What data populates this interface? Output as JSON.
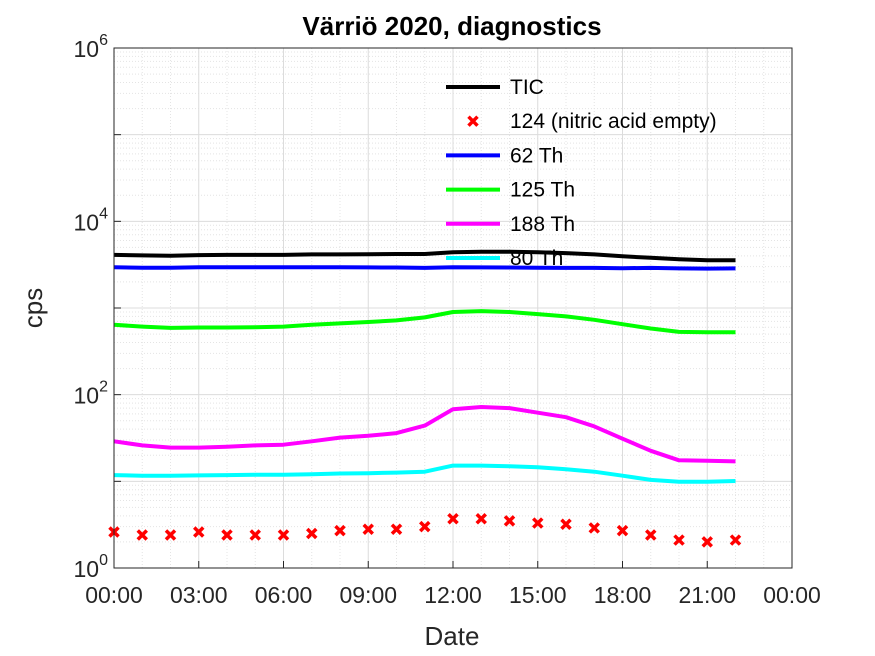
{
  "chart_data": {
    "type": "line",
    "title": "Värriö 2020, diagnostics",
    "xlabel": "Date",
    "ylabel": "cps",
    "yscale": "log",
    "ylim": [
      1,
      1000000
    ],
    "yticks": [
      {
        "value": 1,
        "base": "10",
        "exp": "0"
      },
      {
        "value": 100,
        "base": "10",
        "exp": "2"
      },
      {
        "value": 10000,
        "base": "10",
        "exp": "4"
      },
      {
        "value": 1000000,
        "base": "10",
        "exp": "6"
      }
    ],
    "xlim": [
      0,
      24
    ],
    "xticks": [
      {
        "value": 0,
        "label": "00:00"
      },
      {
        "value": 3,
        "label": "03:00"
      },
      {
        "value": 6,
        "label": "06:00"
      },
      {
        "value": 9,
        "label": "09:00"
      },
      {
        "value": 12,
        "label": "12:00"
      },
      {
        "value": 15,
        "label": "15:00"
      },
      {
        "value": 18,
        "label": "18:00"
      },
      {
        "value": 21,
        "label": "21:00"
      },
      {
        "value": 24,
        "label": "00:00"
      }
    ],
    "grid": true,
    "minor_grid": true,
    "legend_position": "top-right",
    "x": [
      0,
      1,
      2,
      3,
      4,
      5,
      6,
      7,
      8,
      9,
      10,
      11,
      12,
      13,
      14,
      15,
      16,
      17,
      18,
      19,
      20,
      21,
      22
    ],
    "series": [
      {
        "name": "TIC",
        "style": "line",
        "color": "#000000",
        "values": [
          4100,
          4050,
          4000,
          4080,
          4100,
          4100,
          4100,
          4150,
          4150,
          4180,
          4200,
          4200,
          4400,
          4450,
          4450,
          4400,
          4300,
          4150,
          3950,
          3800,
          3650,
          3550,
          3550
        ]
      },
      {
        "name": "124 (nitric acid empty)",
        "style": "marker",
        "color": "#ff0000",
        "values": [
          2.6,
          2.4,
          2.4,
          2.6,
          2.4,
          2.4,
          2.4,
          2.5,
          2.7,
          2.8,
          2.8,
          3.0,
          3.7,
          3.7,
          3.5,
          3.3,
          3.2,
          2.9,
          2.7,
          2.4,
          2.1,
          2.0,
          2.1
        ]
      },
      {
        "name": "62 Th",
        "style": "line",
        "color": "#0000ff",
        "values": [
          2950,
          2920,
          2920,
          2960,
          2960,
          2950,
          2950,
          2960,
          2950,
          2940,
          2930,
          2900,
          2950,
          2940,
          2930,
          2920,
          2900,
          2900,
          2880,
          2900,
          2860,
          2850,
          2860
        ]
      },
      {
        "name": "125 Th",
        "style": "line",
        "color": "#00ff00",
        "values": [
          640,
          610,
          590,
          595,
          595,
          600,
          610,
          640,
          665,
          690,
          720,
          780,
          900,
          920,
          900,
          850,
          800,
          730,
          650,
          580,
          530,
          525,
          525
        ]
      },
      {
        "name": "188 Th",
        "style": "line",
        "color": "#ff00ff",
        "values": [
          29,
          26,
          24.5,
          24.5,
          25,
          26,
          26.5,
          29,
          32,
          33.5,
          36,
          44,
          68,
          72,
          70,
          62,
          55,
          43,
          31,
          22.5,
          17.5,
          17.3,
          17
        ]
      },
      {
        "name": "80 Th",
        "style": "line",
        "color": "#00ffff",
        "values": [
          11.8,
          11.6,
          11.6,
          11.7,
          11.8,
          11.9,
          11.9,
          12.1,
          12.3,
          12.4,
          12.6,
          12.9,
          15.2,
          15.2,
          14.9,
          14.5,
          13.8,
          12.9,
          11.6,
          10.4,
          9.9,
          9.9,
          10.1
        ]
      }
    ]
  }
}
